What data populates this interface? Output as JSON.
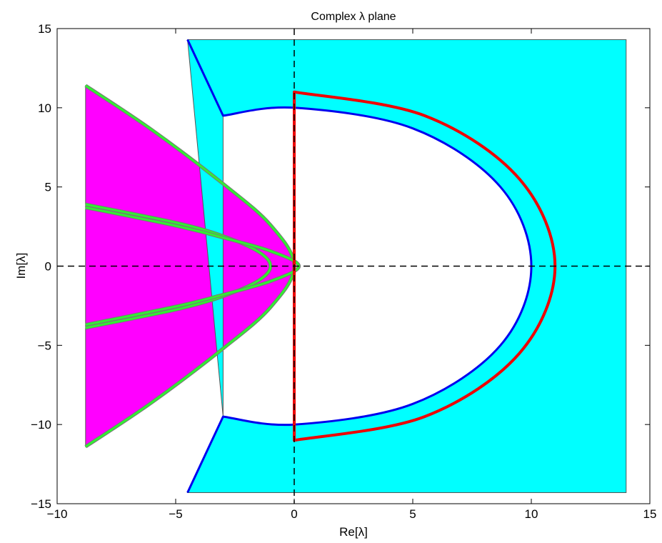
{
  "chart_data": {
    "type": "area",
    "title": "Complex λ plane",
    "xlabel": "Re[λ]",
    "ylabel": "Im[λ]",
    "xlim": [
      -10,
      15
    ],
    "ylim": [
      -15,
      15
    ],
    "x_ticks": [
      -10,
      -5,
      0,
      5,
      10,
      15
    ],
    "x_tick_labels": [
      "−10",
      "−5",
      "0",
      "5",
      "10",
      "15"
    ],
    "y_ticks": [
      -15,
      -10,
      -5,
      0,
      5,
      10,
      15
    ],
    "y_tick_labels": [
      "−15",
      "−10",
      "−5",
      "0",
      "5",
      "10",
      "15"
    ],
    "grid": false,
    "legend": "none",
    "colors": {
      "magenta_region": "#ff00ff",
      "cyan_region": "#00ffff",
      "green_curve": "#33ee33",
      "blue_curve": "#0000ee",
      "red_curve": "#ee0000",
      "dashed_axes": "#000000"
    },
    "regions": [
      {
        "color": "magenta",
        "boundary": [
          [
            -8.8,
            11.4
          ],
          [
            -6,
            8.6
          ],
          [
            -3,
            5.2
          ],
          [
            -1,
            2.6
          ],
          [
            0,
            0
          ],
          [
            -1,
            -2.6
          ],
          [
            -3,
            -5.2
          ],
          [
            -6,
            -8.6
          ],
          [
            -8.8,
            -11.4
          ]
        ]
      },
      {
        "color": "cyan",
        "outer_boundary": [
          [
            -4.5,
            14.3
          ],
          [
            14,
            14.3
          ],
          [
            14,
            -14.3
          ],
          [
            -4.5,
            -14.3
          ],
          [
            -3,
            -9.5
          ]
        ],
        "inner_boundary": "half-ellipse, centre (0,0), Re radius 10, Im radius 10, joined to (-3, 9.5) and (-3, -9.5)"
      }
    ],
    "curves": [
      {
        "color": "green",
        "shape": "outer parabola, vertex (0, 0)",
        "points": [
          [
            -8.8,
            11.4
          ],
          [
            -6,
            8.6
          ],
          [
            -3,
            5.2
          ],
          [
            -1,
            2.6
          ],
          [
            0,
            0
          ],
          [
            -1,
            -2.6
          ],
          [
            -3,
            -5.2
          ],
          [
            -6,
            -8.6
          ],
          [
            -8.8,
            -11.4
          ]
        ]
      },
      {
        "color": "green",
        "shape": "parabola, vertex (-1, 0)",
        "points": [
          [
            -8.8,
            3.9
          ],
          [
            -5,
            2.75
          ],
          [
            -3,
            1.9
          ],
          [
            -1.5,
            0.9
          ],
          [
            -1,
            0
          ],
          [
            -1.5,
            -0.9
          ],
          [
            -3,
            -1.9
          ],
          [
            -5,
            -2.75
          ],
          [
            -8.8,
            -3.9
          ]
        ]
      },
      {
        "color": "green",
        "shape": "parabola, vertex (0.2, 0)",
        "points": [
          [
            -8.8,
            3.7
          ],
          [
            -5,
            2.55
          ],
          [
            -3,
            1.8
          ],
          [
            -1,
            0.95
          ],
          [
            0.2,
            0
          ],
          [
            -1,
            -0.95
          ],
          [
            -3,
            -1.8
          ],
          [
            -5,
            -2.55
          ],
          [
            -8.8,
            -3.7
          ]
        ]
      },
      {
        "color": "blue",
        "shape": "half-ellipse, centre (0,0), Re radius 10, Im radius 10",
        "points": [
          [
            -4.5,
            14.3
          ],
          [
            -3,
            9.5
          ],
          [
            0,
            10
          ],
          [
            5,
            8.7
          ],
          [
            8.7,
            5
          ],
          [
            10,
            0
          ],
          [
            8.7,
            -5
          ],
          [
            5,
            -8.7
          ],
          [
            0,
            -10
          ],
          [
            -3,
            -9.5
          ],
          [
            -4.5,
            -14.3
          ]
        ]
      },
      {
        "color": "red",
        "shape": "closed D, straight edge on Re = 0 from Im = 11 to Im = -11, half-ellipse radius 11",
        "points": [
          [
            0,
            11
          ],
          [
            5.5,
            9.5
          ],
          [
            9.5,
            5.5
          ],
          [
            11,
            0
          ],
          [
            9.5,
            -5.5
          ],
          [
            5.5,
            -9.5
          ],
          [
            0,
            -11
          ]
        ]
      }
    ],
    "dashed_lines": [
      {
        "orientation": "horizontal",
        "value": 0
      },
      {
        "orientation": "vertical",
        "value": 0
      }
    ]
  }
}
